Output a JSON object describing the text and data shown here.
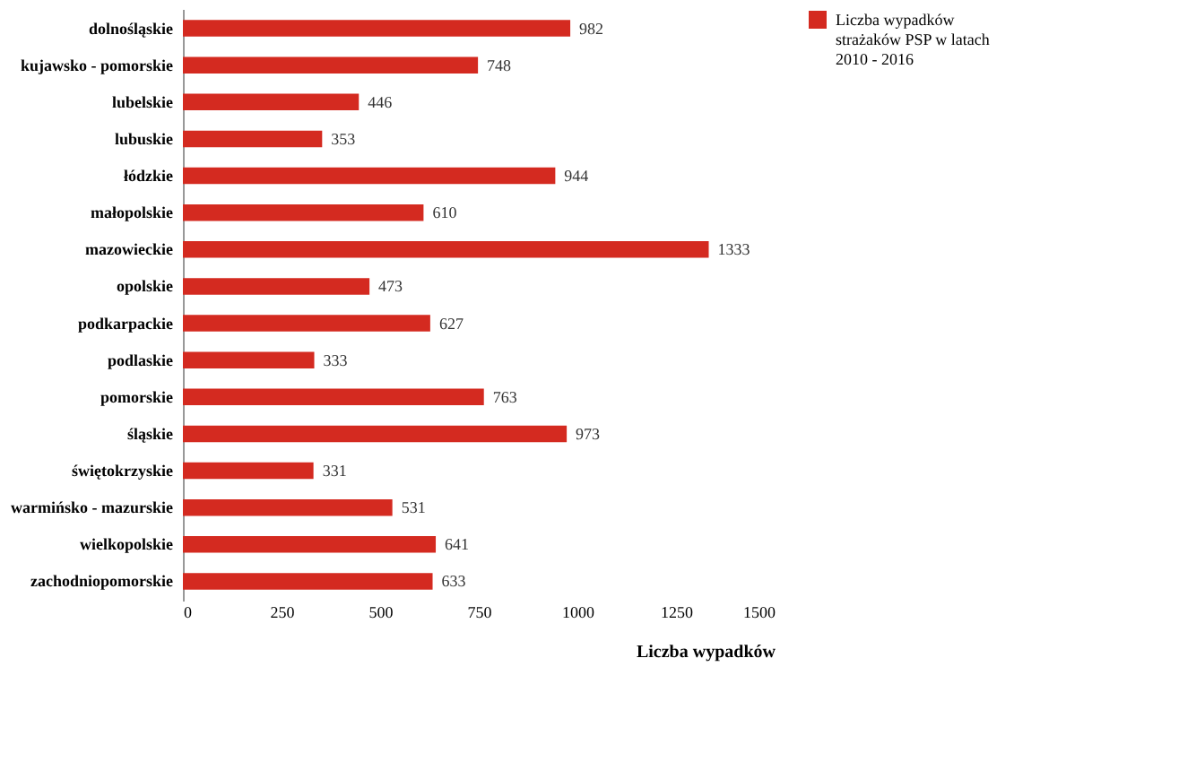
{
  "chart_data": {
    "type": "bar",
    "orientation": "horizontal",
    "xlabel": "Liczba wypadków",
    "categories": [
      "dolnośląskie",
      "kujawsko - pomorskie",
      "lubelskie",
      "lubuskie",
      "łódzkie",
      "małopolskie",
      "mazowieckie",
      "opolskie",
      "podkarpackie",
      "podlaskie",
      "pomorskie",
      "śląskie",
      "świętokrzyskie",
      "warmińsko - mazurskie",
      "wielkopolskie",
      "zachodniopomorskie"
    ],
    "series": [
      {
        "name": "Liczba wypadków strażaków PSP w latach 2010 - 2016",
        "color": "#d42a20",
        "values": [
          982,
          748,
          446,
          353,
          944,
          610,
          1333,
          473,
          627,
          333,
          763,
          973,
          331,
          531,
          641,
          633
        ]
      }
    ],
    "xlim": [
      0,
      1500
    ],
    "xticks": [
      0,
      250,
      500,
      750,
      1000,
      1250,
      1500
    ],
    "data_labels": true,
    "legend": "right",
    "grid": false
  }
}
